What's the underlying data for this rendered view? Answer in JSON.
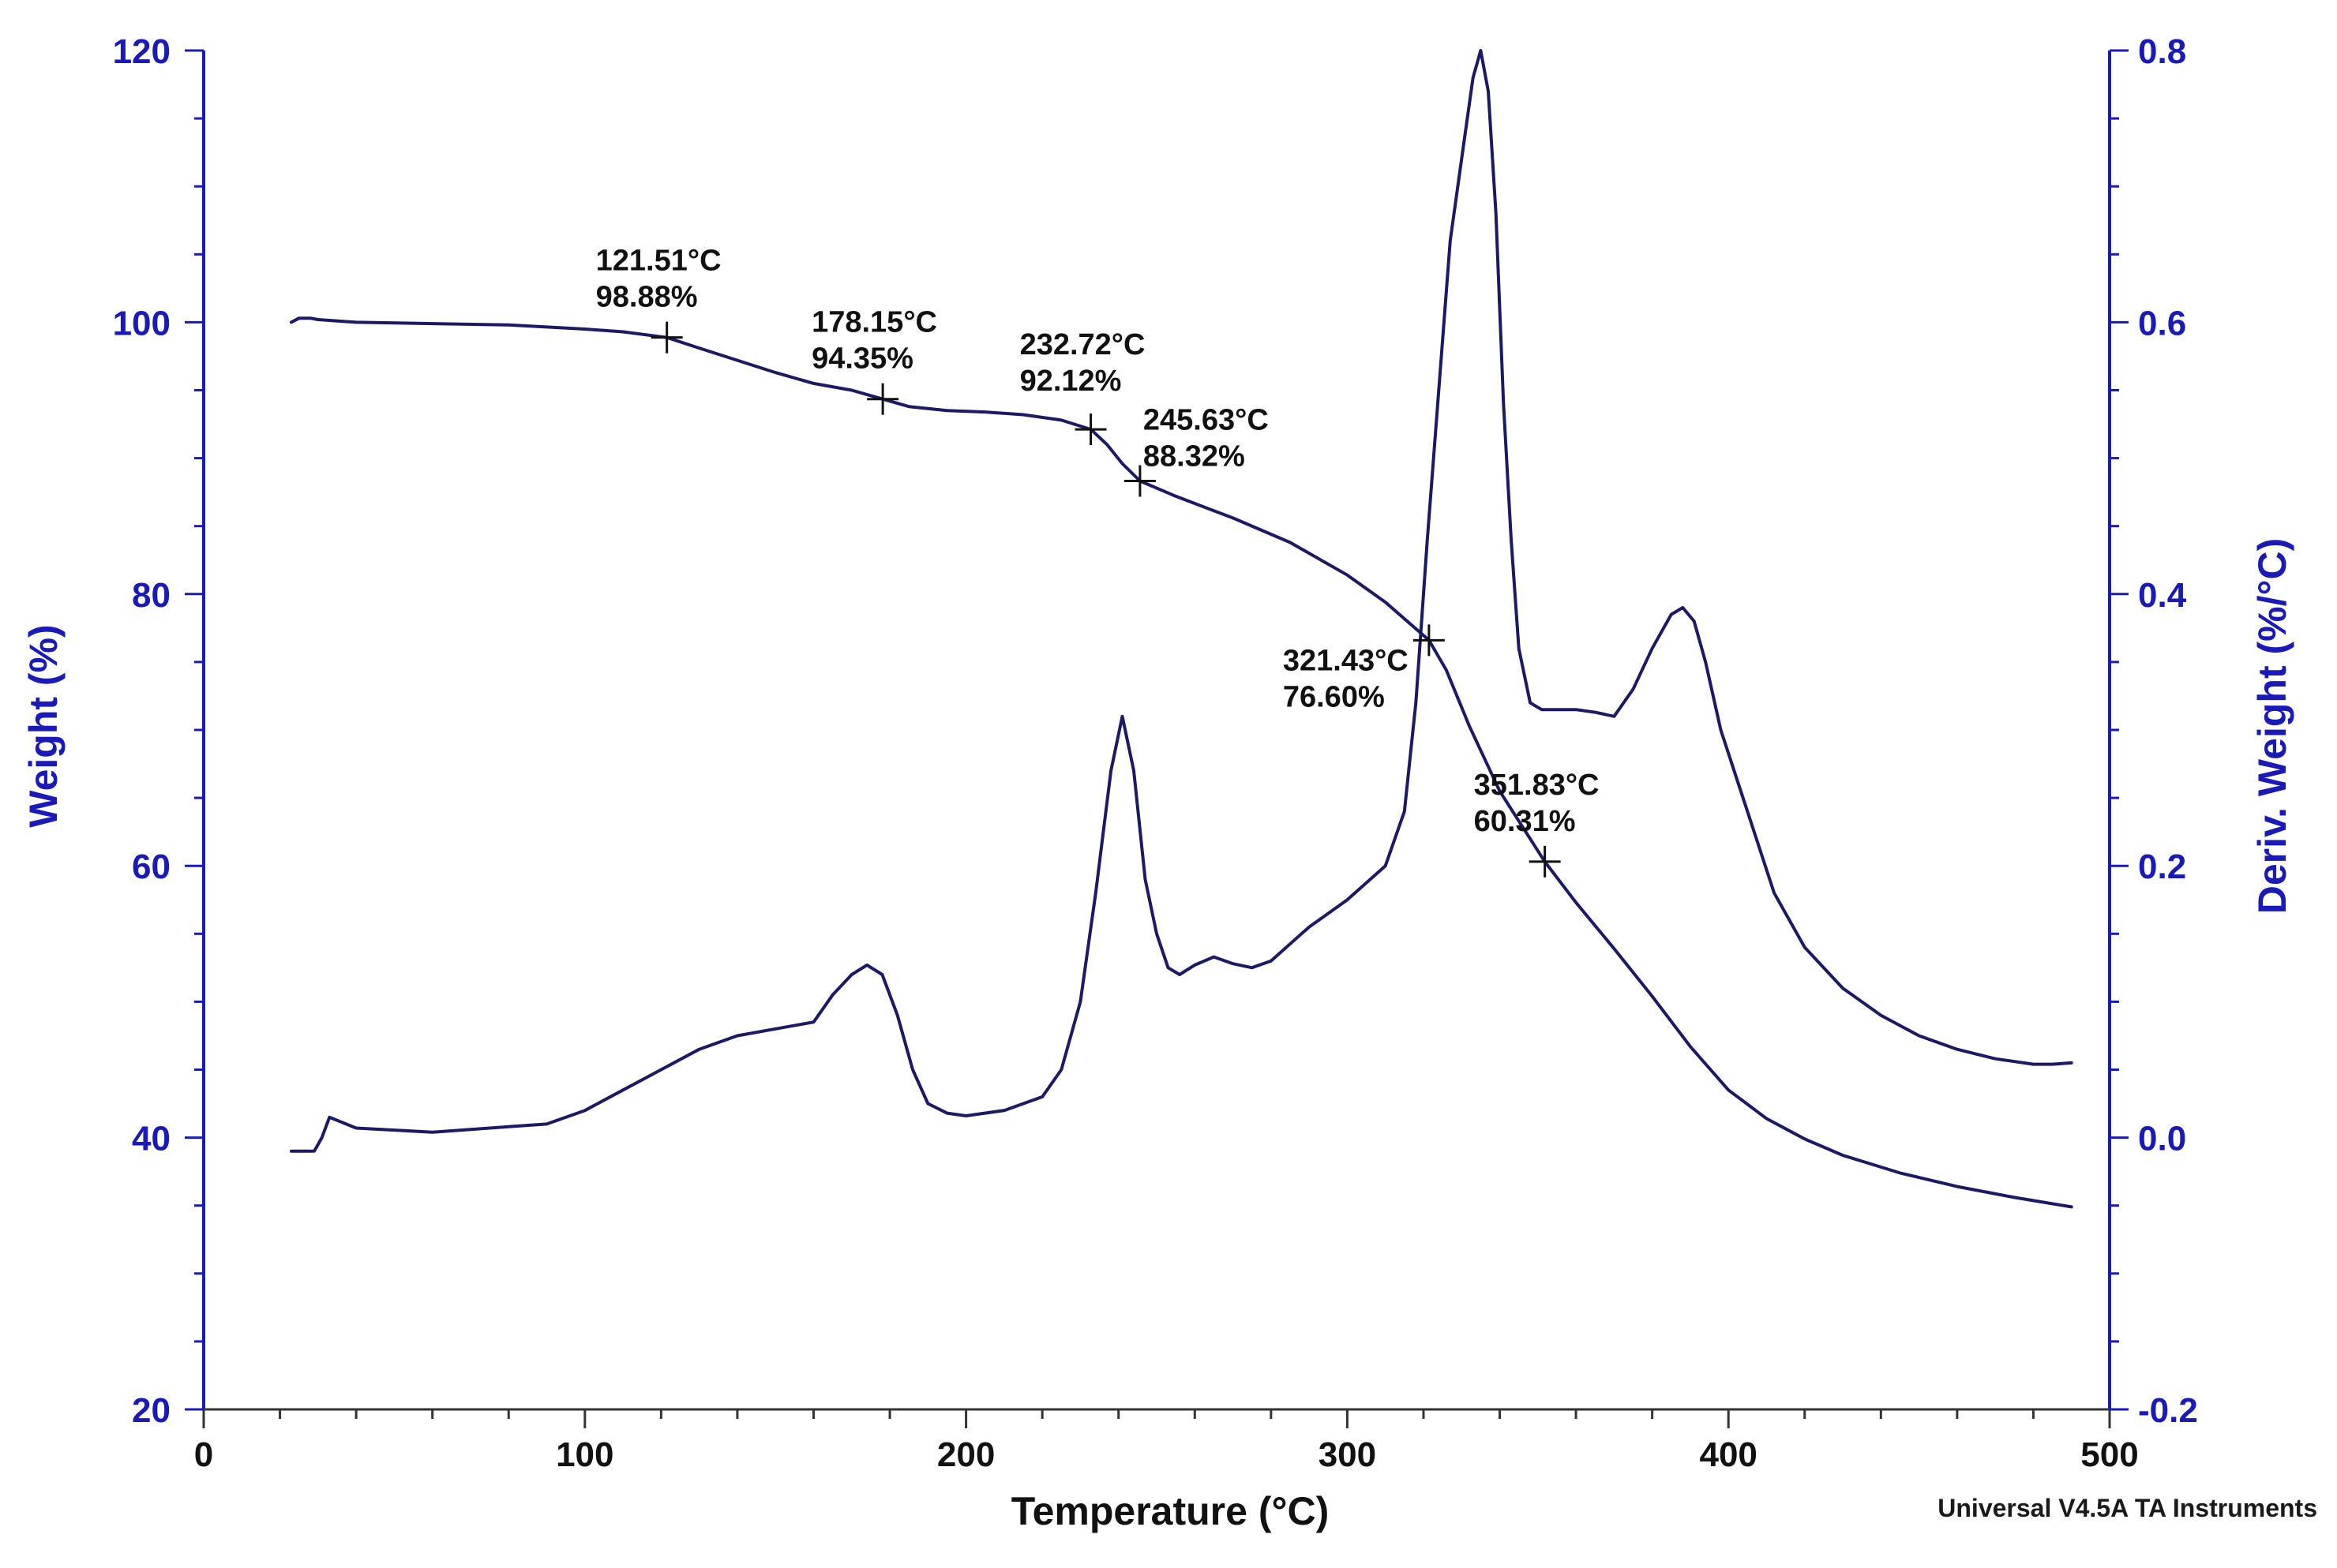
{
  "chart_data": {
    "type": "line",
    "title": "",
    "xlabel": "Temperature (°C)",
    "ylabel_left": "Weight (%)",
    "ylabel_right": "Deriv. Weight (%/°C)",
    "xlim": [
      0,
      500
    ],
    "ylim_left": [
      20,
      120
    ],
    "ylim_right": [
      -0.2,
      0.8
    ],
    "x_ticks": [
      "0",
      "100",
      "200",
      "300",
      "400",
      "500"
    ],
    "y_left_ticks": [
      "20",
      "40",
      "60",
      "80",
      "100",
      "120"
    ],
    "y_right_ticks": [
      "-0.2",
      "0.0",
      "0.2",
      "0.4",
      "0.6",
      "0.8"
    ],
    "grid": false,
    "series": [
      {
        "name": "Weight",
        "axis": "left",
        "x": [
          23,
          25,
          28,
          30,
          40,
          60,
          80,
          100,
          110,
          121.51,
          130,
          140,
          150,
          160,
          170,
          178.15,
          185,
          195,
          205,
          215,
          225,
          232.72,
          237,
          241,
          245.63,
          255,
          270,
          285,
          300,
          310,
          321.43,
          326,
          332,
          340,
          351.83,
          360,
          370,
          380,
          390,
          400,
          410,
          420,
          430,
          445,
          460,
          475,
          490
        ],
        "values": [
          100.0,
          100.3,
          100.3,
          100.2,
          100.0,
          99.9,
          99.8,
          99.5,
          99.3,
          98.88,
          98.1,
          97.2,
          96.3,
          95.5,
          95.0,
          94.35,
          93.8,
          93.5,
          93.4,
          93.2,
          92.8,
          92.12,
          91.0,
          89.6,
          88.32,
          87.2,
          85.6,
          83.8,
          81.4,
          79.4,
          76.6,
          74.4,
          70.3,
          65.5,
          60.31,
          57.3,
          53.9,
          50.4,
          46.7,
          43.5,
          41.4,
          39.9,
          38.7,
          37.4,
          36.4,
          35.6,
          34.9
        ]
      },
      {
        "name": "Deriv. Weight",
        "axis": "right",
        "x": [
          23,
          29,
          31,
          33,
          40,
          60,
          80,
          90,
          100,
          110,
          120,
          130,
          140,
          150,
          160,
          165,
          170,
          174,
          178,
          182,
          186,
          190,
          195,
          200,
          210,
          220,
          225,
          230,
          234,
          238,
          241,
          244,
          247,
          250,
          253,
          256,
          260,
          265,
          270,
          275,
          280,
          290,
          300,
          310,
          315,
          318,
          321,
          324,
          327,
          330,
          333,
          335,
          337,
          339,
          341,
          343,
          345,
          348,
          351,
          355,
          360,
          365,
          370,
          375,
          380,
          385,
          388,
          391,
          394,
          398,
          405,
          412,
          420,
          430,
          440,
          450,
          460,
          470,
          480,
          485,
          490
        ],
        "values": [
          -0.01,
          -0.01,
          0.0,
          0.015,
          0.007,
          0.004,
          0.008,
          0.01,
          0.02,
          0.035,
          0.05,
          0.065,
          0.075,
          0.08,
          0.085,
          0.105,
          0.12,
          0.127,
          0.12,
          0.09,
          0.05,
          0.025,
          0.018,
          0.016,
          0.02,
          0.03,
          0.05,
          0.1,
          0.18,
          0.27,
          0.31,
          0.27,
          0.19,
          0.15,
          0.125,
          0.12,
          0.127,
          0.133,
          0.128,
          0.125,
          0.13,
          0.155,
          0.175,
          0.2,
          0.24,
          0.32,
          0.44,
          0.55,
          0.66,
          0.72,
          0.78,
          0.8,
          0.77,
          0.68,
          0.54,
          0.44,
          0.36,
          0.32,
          0.315,
          0.315,
          0.315,
          0.313,
          0.31,
          0.33,
          0.36,
          0.385,
          0.39,
          0.38,
          0.35,
          0.3,
          0.24,
          0.18,
          0.14,
          0.11,
          0.09,
          0.075,
          0.065,
          0.058,
          0.054,
          0.054,
          0.055
        ]
      }
    ],
    "annotations": [
      {
        "x": 121.51,
        "y": 98.88,
        "temp_label": "121.51°C",
        "weight_label": "98.88%",
        "side": "above"
      },
      {
        "x": 178.15,
        "y": 94.35,
        "temp_label": "178.15°C",
        "weight_label": "94.35%",
        "side": "above"
      },
      {
        "x": 232.72,
        "y": 92.12,
        "temp_label": "232.72°C",
        "weight_label": "92.12%",
        "side": "above-left"
      },
      {
        "x": 245.63,
        "y": 88.32,
        "temp_label": "245.63°C",
        "weight_label": "88.32%",
        "side": "above-right"
      },
      {
        "x": 321.43,
        "y": 76.6,
        "temp_label": "321.43°C",
        "weight_label": "76.60%",
        "side": "below-left"
      },
      {
        "x": 351.83,
        "y": 60.31,
        "temp_label": "351.83°C",
        "weight_label": "60.31%",
        "side": "above"
      }
    ],
    "footer": "Universal V4.5A TA Instruments",
    "colors": {
      "axis": "#1a1ab8",
      "tick_label": "#1a1ab8",
      "x_tick_label": "#111111",
      "curve": "#1a1a66",
      "annotation": "#111111"
    }
  }
}
